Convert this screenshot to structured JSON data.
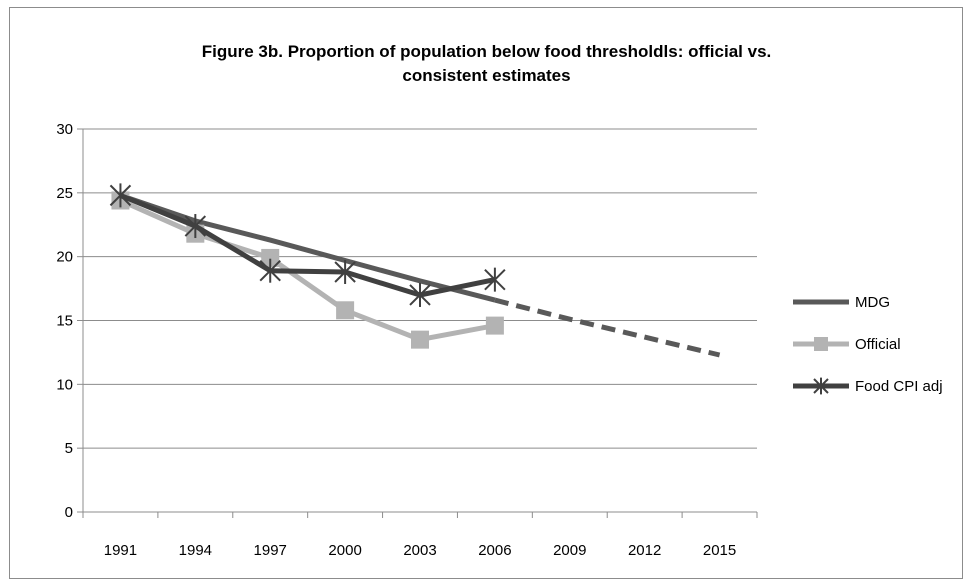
{
  "chart_data": {
    "type": "line",
    "title_lines": [
      "Figure 3b. Proportion of population below food thresholdls:   official vs.",
      "consistent estimates"
    ],
    "title": "Figure 3b. Proportion of population below food thresholdls:   official vs. consistent estimates",
    "categories": [
      "1991",
      "1994",
      "1997",
      "2000",
      "2003",
      "2006",
      "2009",
      "2012",
      "2015"
    ],
    "y_ticks": [
      "0",
      "5",
      "10",
      "15",
      "20",
      "25",
      "30"
    ],
    "ylim": [
      0,
      30
    ],
    "grid": "horizontal",
    "legend_position": "right",
    "series": [
      {
        "name": "MDG",
        "color": "#595959",
        "marker": "none",
        "solid_values": [
          24.8,
          22.8,
          21.3,
          19.7,
          18.1,
          16.6
        ],
        "dashed_values": [
          null,
          null,
          null,
          null,
          null,
          16.6,
          15.1,
          13.7,
          12.3
        ]
      },
      {
        "name": "Official",
        "color": "#b3b3b3",
        "marker": "square",
        "values": [
          24.4,
          21.8,
          19.9,
          15.8,
          13.5,
          14.6,
          null,
          null,
          null
        ]
      },
      {
        "name": "Food CPI adj",
        "color": "#404040",
        "marker": "star",
        "values": [
          24.8,
          22.4,
          18.9,
          18.8,
          17.0,
          18.2,
          null,
          null,
          null
        ]
      }
    ]
  }
}
